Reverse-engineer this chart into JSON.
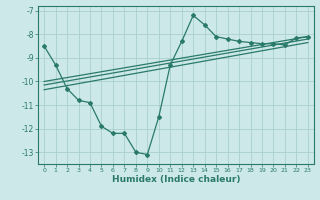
{
  "xlabel": "Humidex (Indice chaleur)",
  "xlim": [
    -0.5,
    23.5
  ],
  "ylim": [
    -13.5,
    -6.8
  ],
  "yticks": [
    -13,
    -12,
    -11,
    -10,
    -9,
    -8,
    -7
  ],
  "xticks": [
    0,
    1,
    2,
    3,
    4,
    5,
    6,
    7,
    8,
    9,
    10,
    11,
    12,
    13,
    14,
    15,
    16,
    17,
    18,
    19,
    20,
    21,
    22,
    23
  ],
  "background_color": "#cce8e8",
  "grid_color": "#aacfcf",
  "line_color": "#2a7a6a",
  "lines": [
    {
      "x": [
        0,
        1,
        2,
        3,
        4,
        5,
        6,
        7,
        8,
        9,
        10,
        11,
        12,
        13,
        14,
        15,
        16,
        17,
        18,
        19,
        20,
        21,
        22,
        23
      ],
      "y": [
        -8.5,
        -9.3,
        -10.3,
        -10.8,
        -10.9,
        -11.9,
        -12.2,
        -12.2,
        -13.0,
        -13.1,
        -11.5,
        -9.3,
        -8.3,
        -7.2,
        -7.6,
        -8.1,
        -8.2,
        -8.3,
        -8.35,
        -8.4,
        -8.4,
        -8.45,
        -8.15,
        -8.1
      ],
      "marker": true
    },
    {
      "x": [
        0,
        23
      ],
      "y": [
        -10.0,
        -8.1
      ],
      "marker": false
    },
    {
      "x": [
        0,
        23
      ],
      "y": [
        -10.15,
        -8.2
      ],
      "marker": false
    },
    {
      "x": [
        0,
        23
      ],
      "y": [
        -10.35,
        -8.35
      ],
      "marker": false
    }
  ]
}
